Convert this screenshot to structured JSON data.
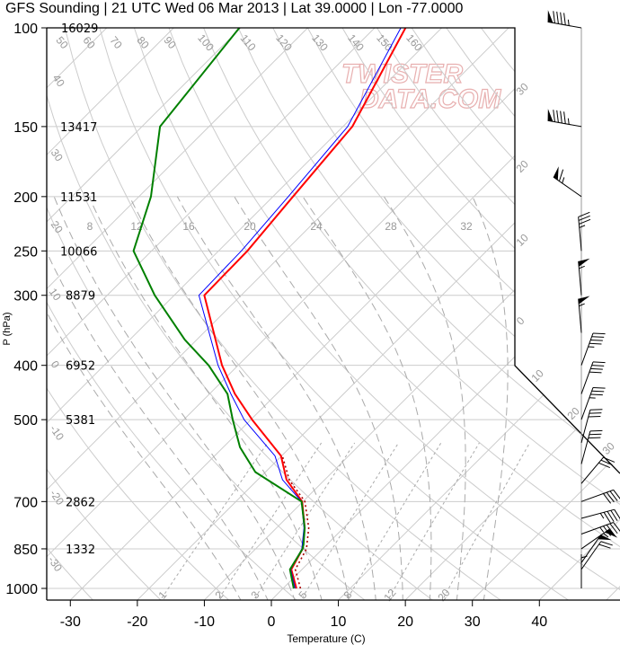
{
  "chart_data": {
    "type": "line",
    "subtype": "skew-t log-p sounding",
    "title": "GFS Sounding | 21 UTC Wed 06 Mar 2013 | Lat 39.0000 | Lon -77.0000",
    "xlabel": "Temperature (C)",
    "ylabel": "P (hPa)",
    "xlim": [
      -33,
      50
    ],
    "ylim": [
      1050,
      100
    ],
    "x_ticks": [
      "-30",
      "-20",
      "-10",
      "0",
      "10",
      "20",
      "30",
      "40"
    ],
    "x_tick_values": [
      -30,
      -20,
      -10,
      0,
      10,
      20,
      30,
      40
    ],
    "pressure_levels": [
      "100",
      "150",
      "200",
      "250",
      "300",
      "400",
      "500",
      "700",
      "850",
      "1000"
    ],
    "pressure_values": [
      100,
      150,
      200,
      250,
      300,
      400,
      500,
      700,
      850,
      1000
    ],
    "heights_m": [
      "16029",
      "13417",
      "11531",
      "10066",
      "8879",
      "6952",
      "5381",
      "2862",
      "1332"
    ],
    "height_pressures": [
      100,
      150,
      200,
      250,
      300,
      400,
      500,
      700,
      850
    ],
    "mixing_ratio_labels_top": [
      "8",
      "12",
      "16",
      "20",
      "24",
      "28",
      "32"
    ],
    "mixing_ratio_labels_bottom": [
      "1",
      "2",
      "3",
      "5",
      "8",
      "12",
      "20"
    ],
    "adiabat_labels_top": [
      "50",
      "60",
      "70",
      "80",
      "90",
      "100",
      "110",
      "120",
      "130",
      "140",
      "150",
      "160"
    ],
    "isotherm_labels_left": [
      "40",
      "30",
      "20",
      "10",
      "0",
      "-10",
      "-20",
      "-30"
    ],
    "isotherm_labels_right": [
      "30",
      "20",
      "10",
      "0",
      "10",
      "20",
      "30"
    ],
    "grid": true,
    "series": [
      {
        "name": "Temperature",
        "color": "#ff0000",
        "style": "solid",
        "p": [
          1000,
          925,
          850,
          840,
          780,
          700,
          640,
          580,
          500,
          450,
          400,
          300,
          250,
          200,
          150,
          100
        ],
        "t": [
          2.0,
          -1.6,
          -3.0,
          -3.4,
          -5.8,
          -10.1,
          -15.7,
          -20.1,
          -29.8,
          -36.2,
          -42.4,
          -55.5,
          -55.7,
          -57.0,
          -58.6,
          -65.4
        ]
      },
      {
        "name": "Parcel",
        "color": "#0000ff",
        "style": "thin",
        "p": [
          1000,
          925,
          850,
          840,
          780,
          700,
          640,
          580,
          500,
          450,
          400,
          300,
          250,
          200,
          150,
          100
        ],
        "t": [
          1.8,
          -1.7,
          -3.1,
          -3.5,
          -5.9,
          -10.2,
          -16.3,
          -21.0,
          -31.0,
          -36.8,
          -43.0,
          -56.3,
          -56.6,
          -57.7,
          -59.3,
          -66.1
        ]
      },
      {
        "name": "Virtual temperature",
        "color": "#aa0000",
        "style": "dotted",
        "p": [
          1000,
          925,
          850,
          840,
          780,
          700,
          640,
          580
        ],
        "t": [
          2.6,
          -1.0,
          -2.4,
          -2.8,
          -5.2,
          -9.7,
          -15.3,
          -19.9
        ]
      },
      {
        "name": "Dewpoint",
        "color": "#008000",
        "style": "solid",
        "p": [
          1000,
          925,
          850,
          835,
          780,
          700,
          620,
          560,
          500,
          450,
          400,
          360,
          300,
          250,
          200,
          150,
          100
        ],
        "t": [
          1.6,
          -1.8,
          -3.0,
          -3.5,
          -5.8,
          -10.2,
          -21.5,
          -27.5,
          -32.7,
          -37.3,
          -44.4,
          -51.8,
          -62.9,
          -72.7,
          -78.2,
          -87.3,
          -90.2
        ]
      }
    ],
    "wind_barbs": [
      {
        "p": 100,
        "dir": 280,
        "speed_kt": 95
      },
      {
        "p": 150,
        "dir": 280,
        "speed_kt": 95
      },
      {
        "p": 200,
        "dir": 305,
        "speed_kt": 65
      },
      {
        "p": 250,
        "dir": 355,
        "speed_kt": 35
      },
      {
        "p": 300,
        "dir": 355,
        "speed_kt": 55
      },
      {
        "p": 350,
        "dir": 355,
        "speed_kt": 55
      },
      {
        "p": 400,
        "dir": 20,
        "speed_kt": 45
      },
      {
        "p": 450,
        "dir": 20,
        "speed_kt": 40
      },
      {
        "p": 500,
        "dir": 20,
        "speed_kt": 35
      },
      {
        "p": 550,
        "dir": 15,
        "speed_kt": 30
      },
      {
        "p": 600,
        "dir": 15,
        "speed_kt": 30
      },
      {
        "p": 650,
        "dir": 40,
        "speed_kt": 30
      },
      {
        "p": 700,
        "dir": 70,
        "speed_kt": 40
      },
      {
        "p": 750,
        "dir": 75,
        "speed_kt": 45
      },
      {
        "p": 800,
        "dir": 70,
        "speed_kt": 45
      },
      {
        "p": 850,
        "dir": 55,
        "speed_kt": 55
      },
      {
        "p": 900,
        "dir": 35,
        "speed_kt": 50
      },
      {
        "p": 925,
        "dir": 35,
        "speed_kt": 20
      },
      {
        "p": 1000,
        "dir": 0,
        "speed_kt": 5
      }
    ]
  },
  "watermark": {
    "line1": "TWISTER",
    "line2": "DATA.COM"
  }
}
